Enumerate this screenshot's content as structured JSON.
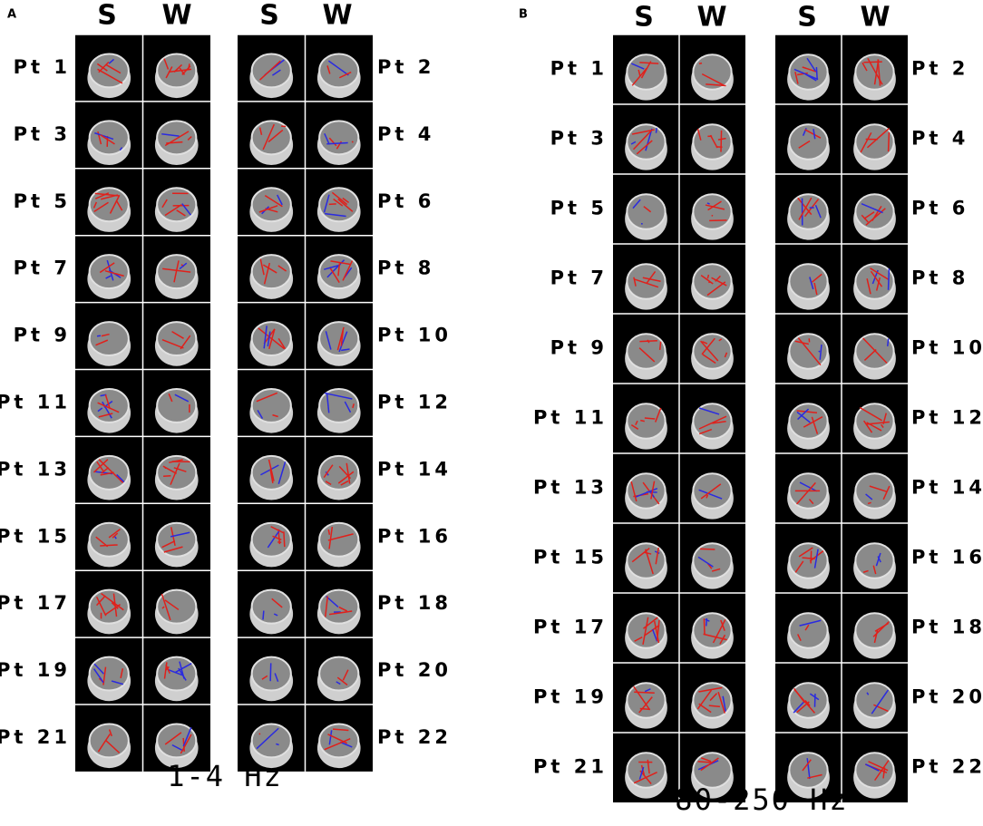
{
  "panels": [
    {
      "label": "A",
      "column_headers": [
        "S",
        "W",
        "S",
        "W"
      ],
      "patients": [
        "Pt 1",
        "Pt 2",
        "Pt 3",
        "Pt 4",
        "Pt 5",
        "Pt 6",
        "Pt 7",
        "Pt 8",
        "Pt 9",
        "Pt 10",
        "Pt 11",
        "Pt 12",
        "Pt 13",
        "Pt 14",
        "Pt 15",
        "Pt 16",
        "Pt 17",
        "Pt 18",
        "Pt 19",
        "Pt 20",
        "Pt 21",
        "Pt 22"
      ],
      "band": "1-4 Hz"
    },
    {
      "label": "B",
      "column_headers": [
        "S",
        "W",
        "S",
        "W"
      ],
      "patients": [
        "Pt 1",
        "Pt 2",
        "Pt 3",
        "Pt 4",
        "Pt 5",
        "Pt 6",
        "Pt 7",
        "Pt 8",
        "Pt 9",
        "Pt 10",
        "Pt 11",
        "Pt 12",
        "Pt 13",
        "Pt 14",
        "Pt 15",
        "Pt 16",
        "Pt 17",
        "Pt 18",
        "Pt 19",
        "Pt 20",
        "Pt 21",
        "Pt 22"
      ],
      "band": "80-250 Hz"
    }
  ]
}
